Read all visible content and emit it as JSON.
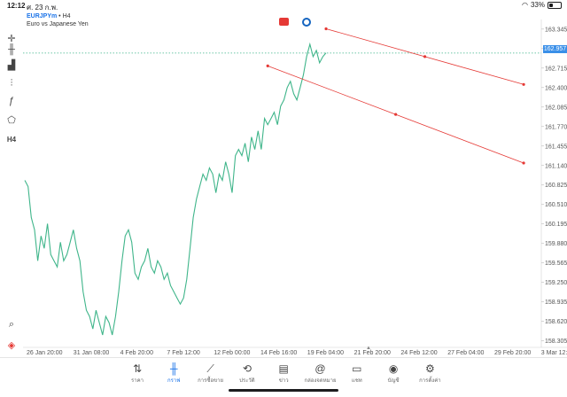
{
  "status_bar": {
    "time": "12:12",
    "date": "ศ. 23 ก.พ.",
    "battery": "33%",
    "battery_level": 0.33
  },
  "symbol": {
    "name": "EURJPYm",
    "timeframe": "H4",
    "description": "Euro vs Japanese Yen"
  },
  "left_toolbar": [
    {
      "name": "crosshair-icon",
      "glyph": "✛"
    },
    {
      "name": "candles-icon",
      "glyph": "╫"
    },
    {
      "name": "indicators-icon",
      "glyph": "▟"
    },
    {
      "name": "settings-sliders-icon",
      "glyph": "⫶"
    },
    {
      "name": "function-icon",
      "glyph": "ƒ"
    },
    {
      "name": "objects-icon",
      "glyph": "⬠"
    },
    {
      "name": "timeframe-button",
      "glyph": "H4"
    }
  ],
  "price_axis": [
    "163.345",
    "163.030",
    "162.715",
    "162.400",
    "162.085",
    "161.770",
    "161.455",
    "161.140",
    "160.825",
    "160.510",
    "160.195",
    "159.880",
    "159.565",
    "159.250",
    "158.935",
    "158.620",
    "158.305"
  ],
  "current_price": "162.957",
  "time_axis": [
    "26 Jan 20:00",
    "31 Jan 08:00",
    "4 Feb 20:00",
    "7 Feb 12:00",
    "12 Feb 00:00",
    "14 Feb 16:00",
    "19 Feb 04:00",
    "21 Feb 20:00",
    "24 Feb 12:00",
    "27 Feb 04:00",
    "29 Feb 20:00",
    "3 Mar 12:00"
  ],
  "tabs": [
    {
      "label": "ราคา",
      "icon": "quotes-icon",
      "glyph": "⇅"
    },
    {
      "label": "กราฟ",
      "icon": "chart-icon",
      "glyph": "╫",
      "active": true
    },
    {
      "label": "การซื้อขาย",
      "icon": "trade-icon",
      "glyph": "⟋"
    },
    {
      "label": "ประวัติ",
      "icon": "history-icon",
      "glyph": "⟲"
    },
    {
      "label": "ข่าว",
      "icon": "news-icon",
      "glyph": "▤"
    },
    {
      "label": "กล่องจดหมาย",
      "icon": "mailbox-icon",
      "glyph": "@"
    },
    {
      "label": "แชท",
      "icon": "chat-icon",
      "glyph": "▭"
    },
    {
      "label": "บัญชี",
      "icon": "account-icon",
      "glyph": "◉"
    },
    {
      "label": "การตั้งค่า",
      "icon": "settings-icon",
      "glyph": "⚙"
    }
  ],
  "chart_data": {
    "type": "line",
    "line_color": "#3fb58a",
    "channel_color": "#e53935",
    "y_range": [
      158.2,
      163.5
    ],
    "prices": [
      160.9,
      160.8,
      160.3,
      160.1,
      159.6,
      160.0,
      159.8,
      160.2,
      159.7,
      159.6,
      159.5,
      159.9,
      159.6,
      159.7,
      159.9,
      160.1,
      159.8,
      159.6,
      159.1,
      158.8,
      158.7,
      158.5,
      158.8,
      158.6,
      158.4,
      158.7,
      158.6,
      158.4,
      158.7,
      159.1,
      159.6,
      160.0,
      160.1,
      159.9,
      159.4,
      159.3,
      159.5,
      159.6,
      159.8,
      159.5,
      159.4,
      159.6,
      159.5,
      159.3,
      159.4,
      159.2,
      159.1,
      159.0,
      158.9,
      159.0,
      159.3,
      159.8,
      160.3,
      160.6,
      160.8,
      161.0,
      160.9,
      161.1,
      161.0,
      160.7,
      161.0,
      160.9,
      161.2,
      161.0,
      160.7,
      161.3,
      161.4,
      161.3,
      161.5,
      161.2,
      161.6,
      161.4,
      161.7,
      161.4,
      161.9,
      161.8,
      161.9,
      162.0,
      161.8,
      162.1,
      162.2,
      162.4,
      162.5,
      162.3,
      162.2,
      162.4,
      162.6,
      162.9,
      163.1,
      162.9,
      163.0,
      162.8,
      162.9,
      162.96
    ],
    "channel_lines": [
      {
        "from_index": 93,
        "from_price": 163.35,
        "to_index": 154,
        "to_price": 162.45
      },
      {
        "from_index": 75,
        "from_price": 162.75,
        "to_index": 154,
        "to_price": 161.18
      }
    ]
  }
}
